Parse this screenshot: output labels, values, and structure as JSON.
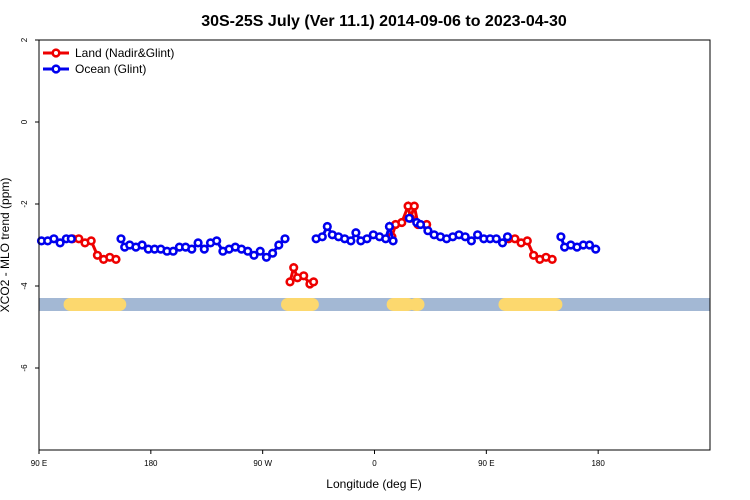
{
  "chart_data": {
    "type": "line",
    "title": "30S-25S July (Ver 11.1)   2014-09-06 to 2023-04-30",
    "xlabel": "Longitude (deg E)",
    "ylabel": "XCO2 - MLO trend (ppm)",
    "xlim": [
      90,
      630
    ],
    "ylim": [
      -8,
      2
    ],
    "x_ticks": [
      {
        "value": 90,
        "label": "90 E"
      },
      {
        "value": 180,
        "label": "180"
      },
      {
        "value": 270,
        "label": "90 W"
      },
      {
        "value": 360,
        "label": "0"
      },
      {
        "value": 450,
        "label": "90 E"
      },
      {
        "value": 540,
        "label": "180"
      }
    ],
    "y_ticks": [
      {
        "value": 2,
        "label": "2"
      },
      {
        "value": 0,
        "label": "0"
      },
      {
        "value": -2,
        "label": "-2"
      },
      {
        "value": -4,
        "label": "-4"
      },
      {
        "value": -6,
        "label": "-6"
      }
    ],
    "grid": false,
    "legend_position": "top-left",
    "land_ocean_band": {
      "y": -4.45,
      "ocean_color": "#a3b8d4",
      "land_color": "#fcd86e",
      "land_segments": [
        [
          115,
          155
        ],
        [
          290,
          310
        ],
        [
          375,
          387
        ],
        [
          393,
          395
        ],
        [
          465,
          506
        ]
      ]
    },
    "series": [
      {
        "name": "Land (Nadir&Glint)",
        "color": "#ee0000",
        "segments": [
          [
            [
              117,
              -2.85
            ],
            [
              122,
              -2.85
            ],
            [
              127,
              -2.95
            ],
            [
              132,
              -2.9
            ],
            [
              137,
              -3.25
            ],
            [
              142,
              -3.35
            ],
            [
              147,
              -3.3
            ],
            [
              152,
              -3.35
            ]
          ],
          [
            [
              292,
              -3.9
            ],
            [
              295,
              -3.55
            ],
            [
              298,
              -3.8
            ],
            [
              303,
              -3.75
            ],
            [
              308,
              -3.95
            ],
            [
              311,
              -3.9
            ]
          ],
          [
            [
              374,
              -2.8
            ],
            [
              377,
              -2.5
            ],
            [
              382,
              -2.45
            ],
            [
              387,
              -2.05
            ],
            [
              389,
              -2.35
            ],
            [
              392,
              -2.05
            ],
            [
              395,
              -2.5
            ],
            [
              402,
              -2.5
            ]
          ],
          [
            [
              468,
              -2.85
            ],
            [
              473,
              -2.85
            ],
            [
              478,
              -2.95
            ],
            [
              483,
              -2.9
            ],
            [
              488,
              -3.25
            ],
            [
              493,
              -3.35
            ],
            [
              498,
              -3.3
            ],
            [
              503,
              -3.35
            ]
          ]
        ]
      },
      {
        "name": "Ocean (Glint)",
        "color": "#0000ee",
        "segments": [
          [
            [
              92,
              -2.9
            ],
            [
              97,
              -2.9
            ],
            [
              102,
              -2.85
            ],
            [
              107,
              -2.95
            ],
            [
              112,
              -2.85
            ],
            [
              116,
              -2.85
            ]
          ],
          [
            [
              156,
              -2.85
            ],
            [
              159,
              -3.05
            ],
            [
              163,
              -3.0
            ],
            [
              168,
              -3.05
            ],
            [
              173,
              -3.0
            ],
            [
              178,
              -3.1
            ],
            [
              183,
              -3.1
            ],
            [
              188,
              -3.1
            ],
            [
              193,
              -3.15
            ],
            [
              198,
              -3.15
            ],
            [
              203,
              -3.05
            ],
            [
              208,
              -3.05
            ],
            [
              213,
              -3.1
            ],
            [
              218,
              -2.95
            ],
            [
              223,
              -3.1
            ],
            [
              228,
              -2.95
            ],
            [
              233,
              -2.9
            ],
            [
              238,
              -3.15
            ],
            [
              243,
              -3.1
            ],
            [
              248,
              -3.05
            ],
            [
              253,
              -3.1
            ],
            [
              258,
              -3.15
            ],
            [
              263,
              -3.25
            ],
            [
              268,
              -3.15
            ],
            [
              273,
              -3.3
            ],
            [
              278,
              -3.2
            ],
            [
              283,
              -3.0
            ],
            [
              288,
              -2.85
            ]
          ],
          [
            [
              313,
              -2.85
            ],
            [
              318,
              -2.8
            ],
            [
              322,
              -2.55
            ],
            [
              326,
              -2.75
            ],
            [
              331,
              -2.8
            ],
            [
              336,
              -2.85
            ],
            [
              341,
              -2.9
            ],
            [
              345,
              -2.7
            ],
            [
              349,
              -2.9
            ],
            [
              354,
              -2.85
            ],
            [
              359,
              -2.75
            ],
            [
              364,
              -2.8
            ],
            [
              369,
              -2.85
            ],
            [
              372,
              -2.55
            ],
            [
              375,
              -2.9
            ]
          ],
          [
            [
              388,
              -2.35
            ],
            [
              394,
              -2.45
            ],
            [
              397,
              -2.5
            ],
            [
              403,
              -2.65
            ],
            [
              408,
              -2.75
            ],
            [
              413,
              -2.8
            ],
            [
              418,
              -2.85
            ],
            [
              423,
              -2.8
            ],
            [
              428,
              -2.75
            ],
            [
              433,
              -2.8
            ],
            [
              438,
              -2.9
            ],
            [
              443,
              -2.75
            ],
            [
              448,
              -2.85
            ],
            [
              453,
              -2.85
            ],
            [
              458,
              -2.85
            ],
            [
              463,
              -2.95
            ],
            [
              467,
              -2.8
            ]
          ],
          [
            [
              510,
              -2.8
            ],
            [
              513,
              -3.05
            ],
            [
              518,
              -3.0
            ],
            [
              523,
              -3.05
            ],
            [
              528,
              -3.0
            ],
            [
              533,
              -3.0
            ],
            [
              538,
              -3.1
            ]
          ]
        ]
      }
    ]
  }
}
